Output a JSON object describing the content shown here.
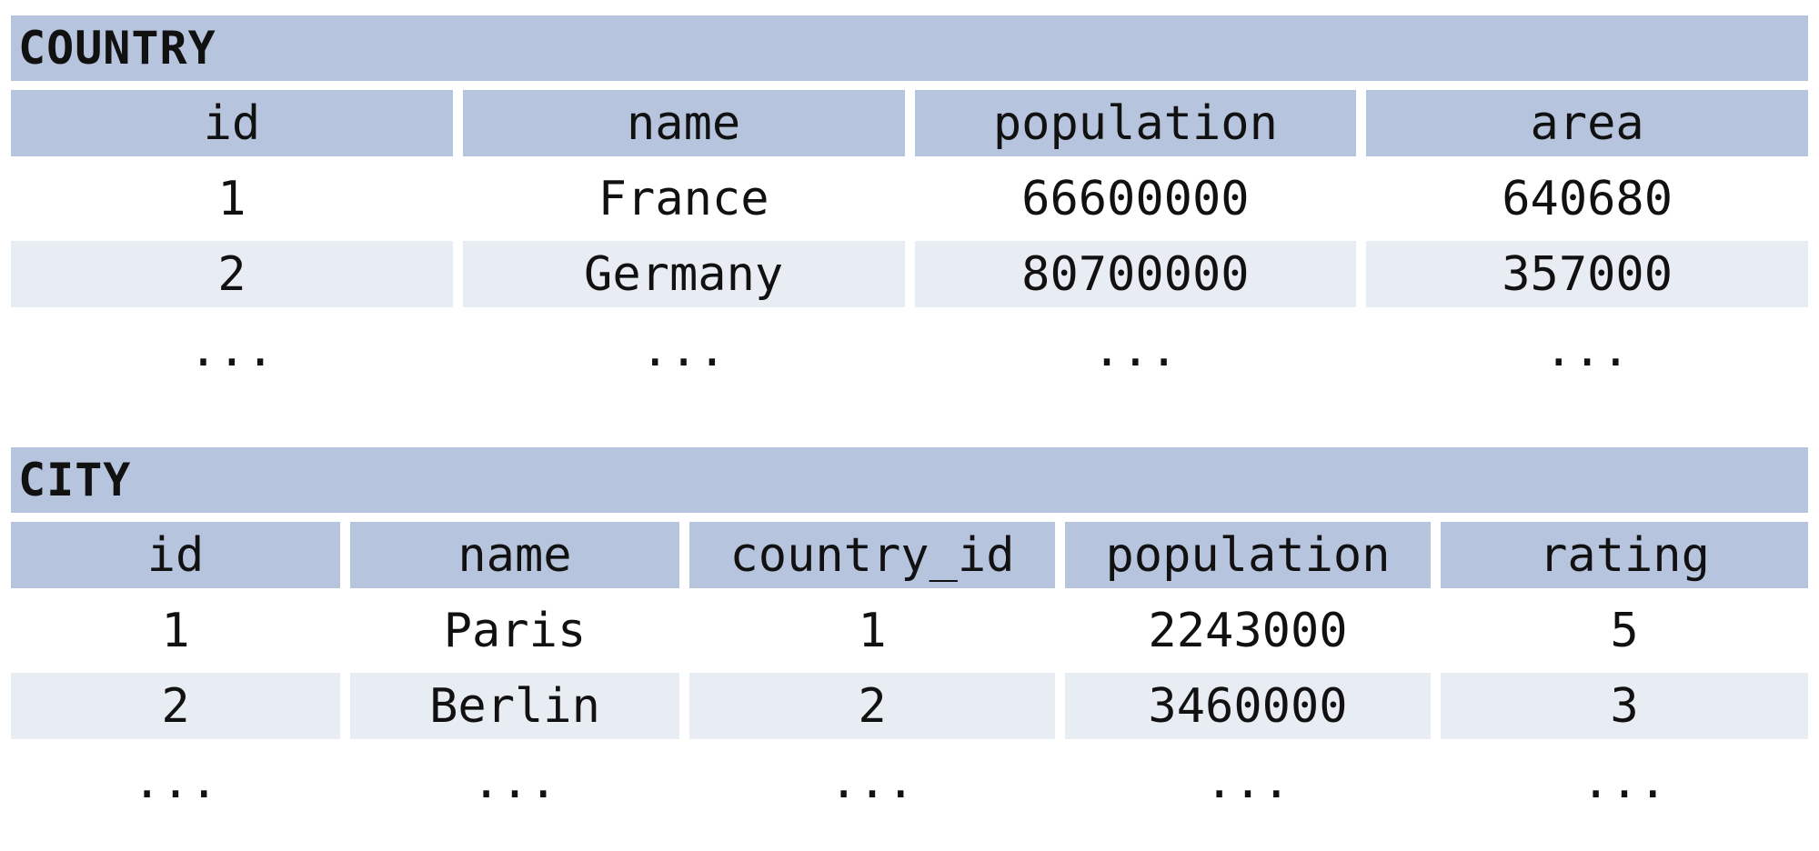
{
  "country": {
    "title": "COUNTRY",
    "columns": [
      "id",
      "name",
      "population",
      "area"
    ],
    "rows": [
      [
        "1",
        "France",
        "66600000",
        "640680"
      ],
      [
        "2",
        "Germany",
        "80700000",
        "357000"
      ],
      [
        "...",
        "...",
        "...",
        "..."
      ]
    ],
    "header_color": "#b7c4dd",
    "alt_row_color": "#e8ecf3"
  },
  "city": {
    "title": "CITY",
    "columns": [
      "id",
      "name",
      "country_id",
      "population",
      "rating"
    ],
    "rows": [
      [
        "1",
        "Paris",
        "1",
        "2243000",
        "5"
      ],
      [
        "2",
        "Berlin",
        "2",
        "3460000",
        "3"
      ],
      [
        "...",
        "...",
        "...",
        "...",
        "..."
      ]
    ],
    "header_color": "#b7c4dd",
    "alt_row_color": "#e8ecf3"
  }
}
